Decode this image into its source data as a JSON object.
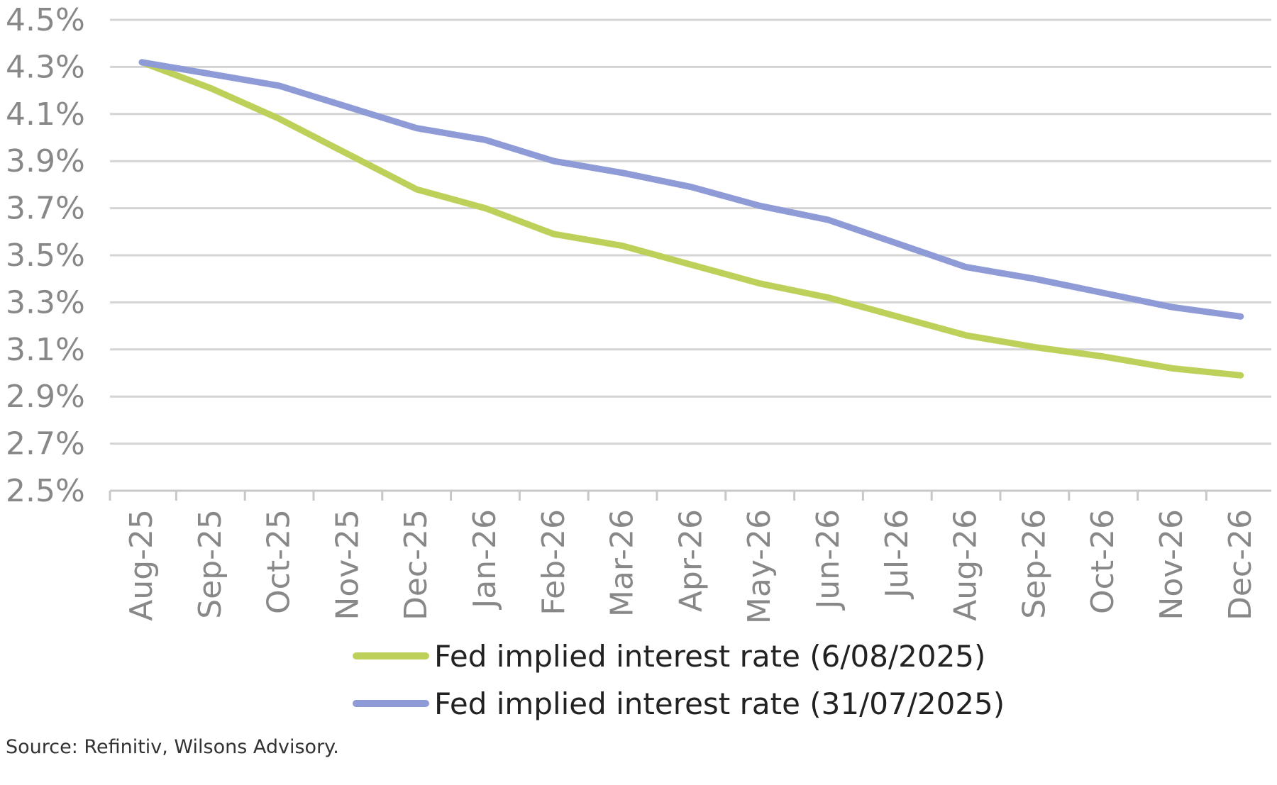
{
  "chart_data": {
    "type": "line",
    "categories": [
      "Aug-25",
      "Sep-25",
      "Oct-25",
      "Nov-25",
      "Dec-25",
      "Jan-26",
      "Feb-26",
      "Mar-26",
      "Apr-26",
      "May-26",
      "Jun-26",
      "Jul-26",
      "Aug-26",
      "Sep-26",
      "Oct-26",
      "Nov-26",
      "Dec-26"
    ],
    "series": [
      {
        "name": "Fed implied interest rate (6/08/2025)",
        "color": "#bdd15a",
        "values": [
          4.32,
          4.21,
          4.08,
          3.93,
          3.78,
          3.7,
          3.59,
          3.54,
          3.46,
          3.38,
          3.32,
          3.24,
          3.16,
          3.11,
          3.07,
          3.02,
          2.99
        ]
      },
      {
        "name": "Fed implied interest rate (31/07/2025)",
        "color": "#8f9bd6",
        "values": [
          4.32,
          4.27,
          4.22,
          4.13,
          4.04,
          3.99,
          3.9,
          3.85,
          3.79,
          3.71,
          3.65,
          3.55,
          3.45,
          3.4,
          3.34,
          3.28,
          3.24
        ]
      }
    ],
    "y_ticks": [
      "4.5%",
      "4.3%",
      "4.1%",
      "3.9%",
      "3.7%",
      "3.5%",
      "3.3%",
      "3.1%",
      "2.9%",
      "2.7%",
      "2.5%"
    ],
    "ylim": [
      2.5,
      4.5
    ],
    "grid": true,
    "legend_position": "bottom",
    "title": "",
    "xlabel": "",
    "ylabel": ""
  },
  "source": "Source: Refinitiv, Wilsons Advisory."
}
